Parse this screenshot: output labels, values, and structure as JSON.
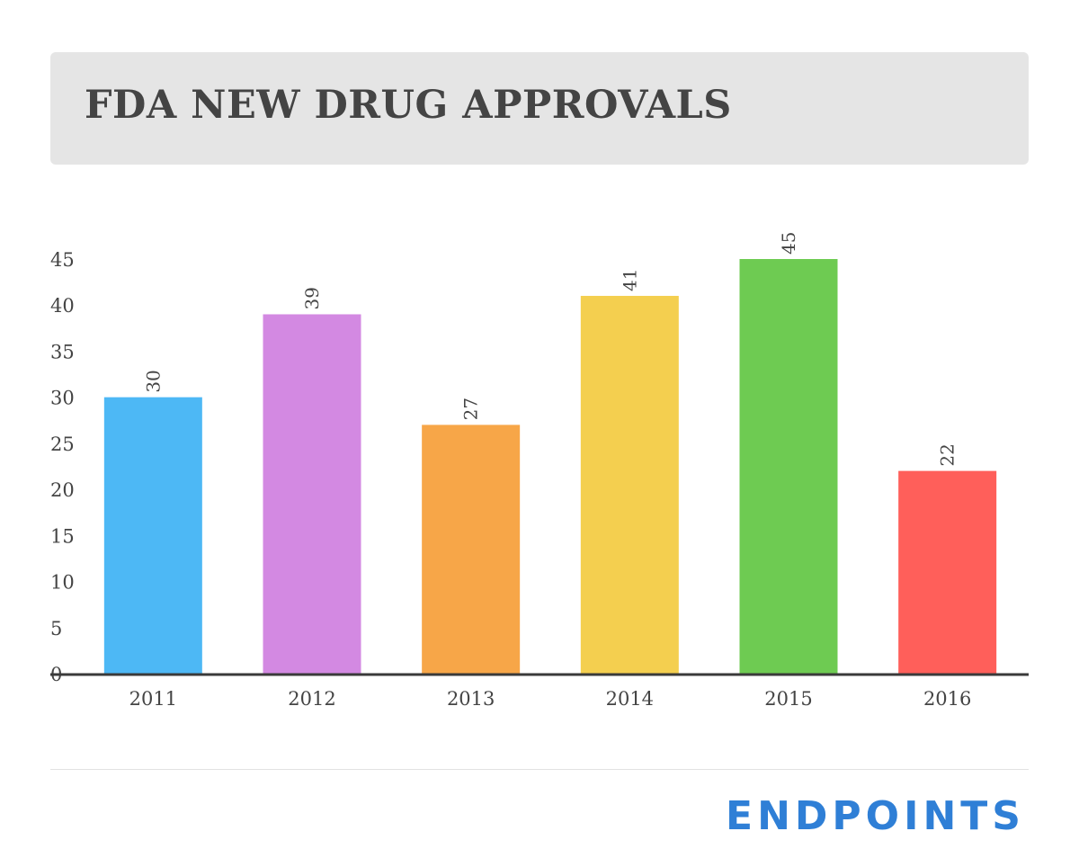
{
  "header": {
    "title": "FDA NEW DRUG APPROVALS"
  },
  "brand": {
    "logo_text": "ENDPOINTS",
    "logo_color": "#2f7fd6"
  },
  "chart_data": {
    "type": "bar",
    "title": "FDA NEW DRUG APPROVALS",
    "xlabel": "",
    "ylabel": "",
    "categories": [
      "2011",
      "2012",
      "2013",
      "2014",
      "2015",
      "2016"
    ],
    "values": [
      30,
      39,
      27,
      41,
      45,
      22
    ],
    "colors": [
      "#4db8f5",
      "#d389e2",
      "#f7a648",
      "#f4cf4f",
      "#6ecb52",
      "#ff5f5a"
    ],
    "ylim": [
      0,
      45
    ],
    "yticks": [
      0,
      5,
      10,
      15,
      20,
      25,
      30,
      35,
      40,
      45
    ],
    "grid": false,
    "legend": "none",
    "data_labels": true
  }
}
